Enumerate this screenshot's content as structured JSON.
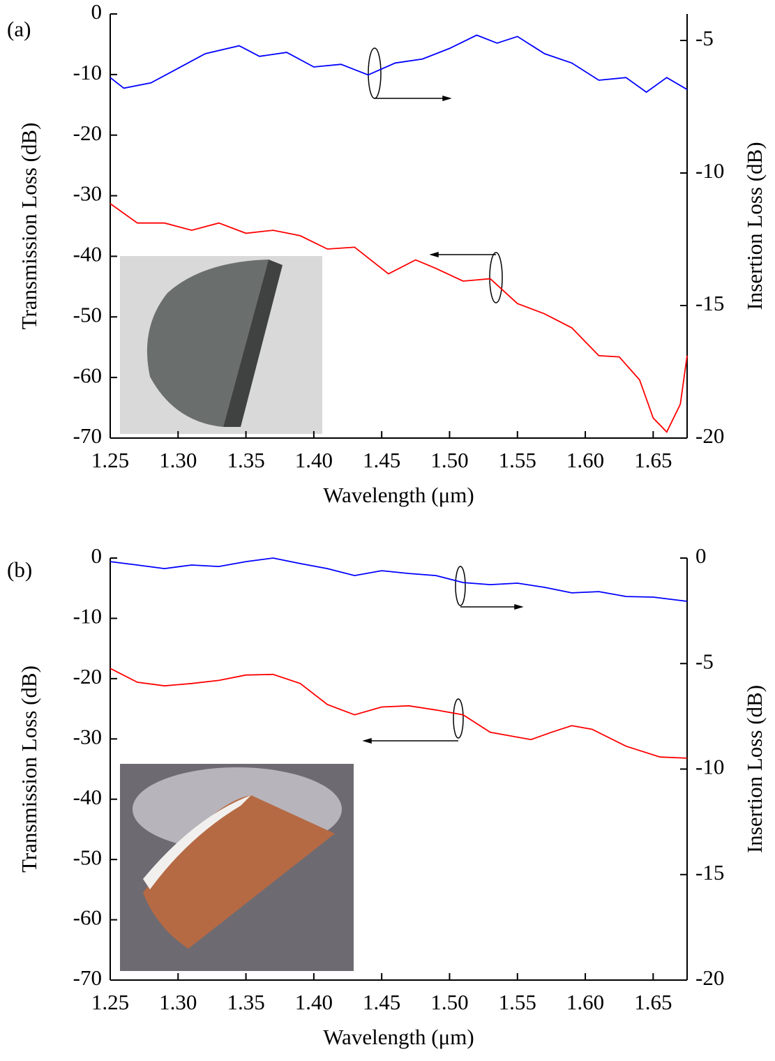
{
  "chart_data": [
    {
      "type": "line",
      "panel_label": "(a)",
      "x_label": "Wavelength (μm)",
      "y_label": "Transmission Loss (dB)",
      "y2_label": "Insertion Loss (dB)",
      "xlim": [
        1.25,
        1.675
      ],
      "xticks": [
        1.25,
        {
          "value": 1.3,
          "label": "1.30"
        },
        1.35,
        {
          "value": 1.4,
          "label": "1.40"
        },
        1.45,
        {
          "value": 1.5,
          "label": "1.50"
        },
        1.55,
        {
          "value": 1.6,
          "label": "1.60"
        },
        1.65
      ],
      "ylim": [
        -70,
        0
      ],
      "yticks": [
        0,
        -10,
        -20,
        -30,
        -40,
        -50,
        -60,
        -70
      ],
      "y2lim": [
        -20,
        -4
      ],
      "y2ticks": [
        -5,
        -10,
        -15,
        -20
      ],
      "series": [
        {
          "color": "#0000ff",
          "axis": "y2",
          "x": [
            1.25,
            1.26,
            1.28,
            1.3,
            1.32,
            1.345,
            1.36,
            1.38,
            1.4,
            1.42,
            1.44,
            1.46,
            1.48,
            1.5,
            1.52,
            1.535,
            1.55,
            1.57,
            1.59,
            1.61,
            1.63,
            1.645,
            1.66,
            1.675
          ],
          "values": [
            -6.4,
            -6.8,
            -6.6,
            -6.05,
            -5.5,
            -5.2,
            -5.6,
            -5.45,
            -6.0,
            -5.9,
            -6.3,
            -5.85,
            -5.7,
            -5.3,
            -4.8,
            -5.1,
            -4.85,
            -5.5,
            -5.85,
            -6.5,
            -6.4,
            -6.95,
            -6.4,
            -6.85
          ]
        },
        {
          "color": "#ff0000",
          "x": [
            1.25,
            1.27,
            1.29,
            1.31,
            1.33,
            1.35,
            1.37,
            1.39,
            1.41,
            1.43,
            1.455,
            1.475,
            1.49,
            1.51,
            1.53,
            1.55,
            1.57,
            1.59,
            1.61,
            1.625,
            1.64,
            1.65,
            1.66,
            1.67,
            1.675
          ],
          "values": [
            -31.3,
            -34.5,
            -34.5,
            -35.7,
            -34.5,
            -36.2,
            -35.7,
            -36.6,
            -38.8,
            -38.5,
            -42.9,
            -40.6,
            -42.0,
            -44.1,
            -43.7,
            -47.8,
            -49.5,
            -51.8,
            -56.4,
            -56.6,
            -60.4,
            -66.7,
            -69.0,
            -64.4,
            -56.4
          ]
        }
      ]
    },
    {
      "type": "line",
      "panel_label": "(b)",
      "x_label": "Wavelength (μm)",
      "y_label": "Transmission Loss (dB)",
      "y2_label": "Insertion Loss (dB)",
      "xlim": [
        1.25,
        1.675
      ],
      "xticks": [
        1.25,
        {
          "value": 1.3,
          "label": "1.30"
        },
        1.35,
        {
          "value": 1.4,
          "label": "1.40"
        },
        1.45,
        {
          "value": 1.5,
          "label": "1.50"
        },
        1.55,
        {
          "value": 1.6,
          "label": "1.60"
        },
        1.65
      ],
      "ylim": [
        -70,
        0
      ],
      "yticks": [
        0,
        -10,
        -20,
        -30,
        -40,
        -50,
        -60,
        -70
      ],
      "y2lim": [
        -20,
        0
      ],
      "y2ticks": [
        0,
        -5,
        -10,
        -15,
        -20
      ],
      "series": [
        {
          "color": "#0000ff",
          "axis": "y2",
          "x": [
            1.25,
            1.27,
            1.29,
            1.31,
            1.33,
            1.35,
            1.37,
            1.39,
            1.41,
            1.43,
            1.45,
            1.47,
            1.49,
            1.51,
            1.53,
            1.55,
            1.57,
            1.59,
            1.61,
            1.63,
            1.65,
            1.675
          ],
          "values": [
            -0.17,
            -0.33,
            -0.5,
            -0.33,
            -0.4,
            -0.17,
            0,
            -0.26,
            -0.5,
            -0.83,
            -0.6,
            -0.73,
            -0.83,
            -1.16,
            -1.26,
            -1.19,
            -1.39,
            -1.65,
            -1.59,
            -1.82,
            -1.85,
            -2.05
          ]
        },
        {
          "color": "#ff0000",
          "x": [
            1.25,
            1.27,
            1.29,
            1.31,
            1.33,
            1.35,
            1.37,
            1.39,
            1.41,
            1.43,
            1.45,
            1.47,
            1.49,
            1.51,
            1.53,
            1.545,
            1.56,
            1.575,
            1.59,
            1.605,
            1.63,
            1.655,
            1.675
          ],
          "values": [
            -18.3,
            -20.6,
            -21.2,
            -20.8,
            -20.3,
            -19.4,
            -19.3,
            -20.8,
            -24.3,
            -26.0,
            -24.7,
            -24.5,
            -25.2,
            -26.0,
            -28.9,
            -29.5,
            -30.1,
            -28.9,
            -27.8,
            -28.4,
            -31.2,
            -33.0,
            -33.2
          ]
        }
      ]
    }
  ]
}
